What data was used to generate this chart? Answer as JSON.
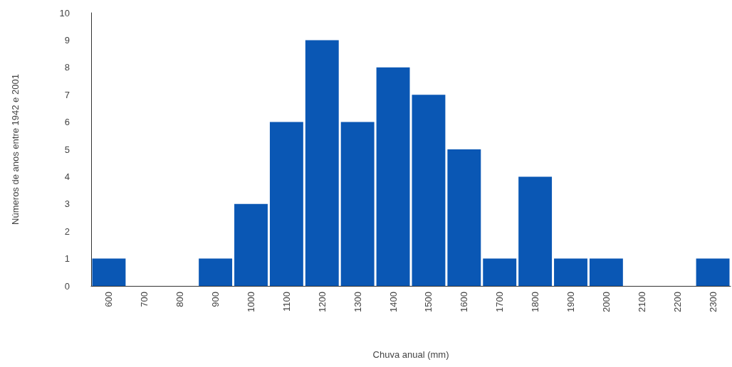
{
  "chart_data": {
    "type": "bar",
    "xlabel": "Chuva anual (mm)",
    "ylabel": "Números de anos entre 1942 e 2001",
    "categories": [
      "600",
      "700",
      "800",
      "900",
      "1000",
      "1100",
      "1200",
      "1300",
      "1400",
      "1500",
      "1600",
      "1700",
      "1800",
      "1900",
      "2000",
      "2100",
      "2200",
      "2300"
    ],
    "values": [
      1,
      0,
      0,
      1,
      3,
      6,
      9,
      6,
      8,
      7,
      5,
      1,
      4,
      1,
      1,
      0,
      0,
      1
    ],
    "color": "#0a57b4",
    "ylim": [
      0,
      10
    ],
    "yticks": [
      0,
      1,
      2,
      3,
      4,
      5,
      6,
      7,
      8,
      9,
      10
    ],
    "grid": false
  }
}
